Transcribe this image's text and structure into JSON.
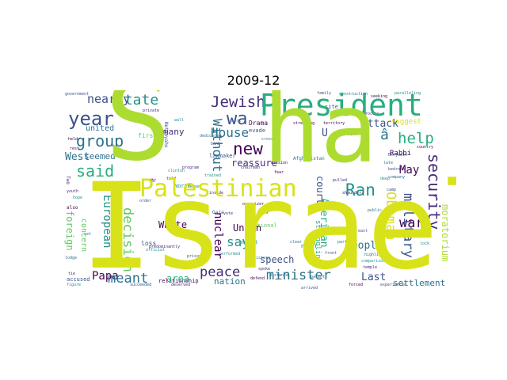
{
  "figure": {
    "title": "2009-12"
  },
  "wordcloud": {
    "palette": [
      "#440154",
      "#472c7a",
      "#3b528b",
      "#2c728e",
      "#21918c",
      "#28ae80",
      "#5ec962",
      "#addc30",
      "#d8e219",
      "#fde725"
    ],
    "words": {
      "israel": "Israel",
      "s": "S",
      "ha": "ha",
      "president": "President",
      "palestinian": "Palestinian",
      "new": "new",
      "wa": "wa",
      "jewish": "Jewish",
      "year": "year",
      "group": "group",
      "said": "said",
      "state": "state",
      "nearly": "nearly",
      "house": "House",
      "without": "Without",
      "west": "West",
      "seemed": "seemed",
      "united": "united",
      "concern": "concern",
      "foreign": "foreign",
      "european": "European",
      "decision": "decision",
      "papa": "Papa",
      "meant": "meant",
      "white": "White",
      "peace": "peace",
      "area": "area",
      "nation": "nation",
      "speech": "speech",
      "union": "Union",
      "say": "say",
      "nuclear": "nuclear",
      "reassure": "reassure",
      "minister": "minister",
      "american": "American",
      "court": "court",
      "ran": "Ran",
      "obamaa": "Obamaâ",
      "attack": "attack",
      "help": "help",
      "a_hat": "â",
      "may": "May",
      "war": "war",
      "military": "military",
      "security": "security",
      "people": "people",
      "last": "Last",
      "settlement": "settlement",
      "moratorium": "moratorium",
      "rabbi": "Rabbi",
      "many": "many",
      "drama": "Drama",
      "lawmaker": "lawmaker",
      "struggling": "struggling",
      "suggest": "suggest",
      "loss": "loss",
      "never": "never",
      "first": "first",
      "u": "U",
      "relationship": "relationship",
      "national": "national",
      "accused": "accused",
      "afghanistan": "Afghanistan",
      "day": "day",
      "evade": "evade",
      "north": "North",
      "government": "government",
      "benjamin": "Benjamin",
      "official": "official",
      "program": "program",
      "site": "site",
      "territory": "territory",
      "private": "private",
      "paralleling": "paralleling",
      "construction": "construction",
      "seeking": "seeking",
      "family": "family",
      "process": "process",
      "deep": "deep",
      "expansion": "expansion",
      "highlight": "highlight",
      "shoulder": "shoulder",
      "predominantly": "predominantly",
      "comparison": "comparison",
      "experienced": "experienced",
      "company": "company",
      "country": "country",
      "chairman": "chairman",
      "figure": "figure",
      "succeeded": "succeeded",
      "dedicated": "dedicated",
      "organizer": "organizer",
      "inside": "inside",
      "mark": "mark",
      "bank": "bank",
      "lodge": "lodge",
      "rest": "rest",
      "told": "told",
      "musket": "musket",
      "prison": "prison",
      "history": "history",
      "stressing": "stressing",
      "pulled": "pulled",
      "performed": "performed",
      "distance": "distance",
      "crossing": "crossing",
      "forced": "forced",
      "deserved": "deserved",
      "lock": "lock",
      "arrived": "arrived",
      "clear": "clear",
      "netanyahu": "Netanyahu",
      "two": "Two",
      "hope": "hope",
      "also": "also",
      "set": "set",
      "gaza": "Gaza",
      "began": "began",
      "vote": "vote",
      "mr": "Mr",
      "front": "front",
      "late": "late",
      "trained": "trained",
      "youth": "youth",
      "mission": "mission",
      "order": "order",
      "part": "part",
      "stage": "stage",
      "temple": "temple",
      "defend": "defend",
      "bedrock": "bedrock",
      "parent": "parent",
      "wall": "wall",
      "spoke": "spoke",
      "held": "held",
      "camp": "camp",
      "public": "public",
      "clinton": "clinton",
      "tie": "tie",
      "fear": "fear",
      "east": "east"
    }
  }
}
